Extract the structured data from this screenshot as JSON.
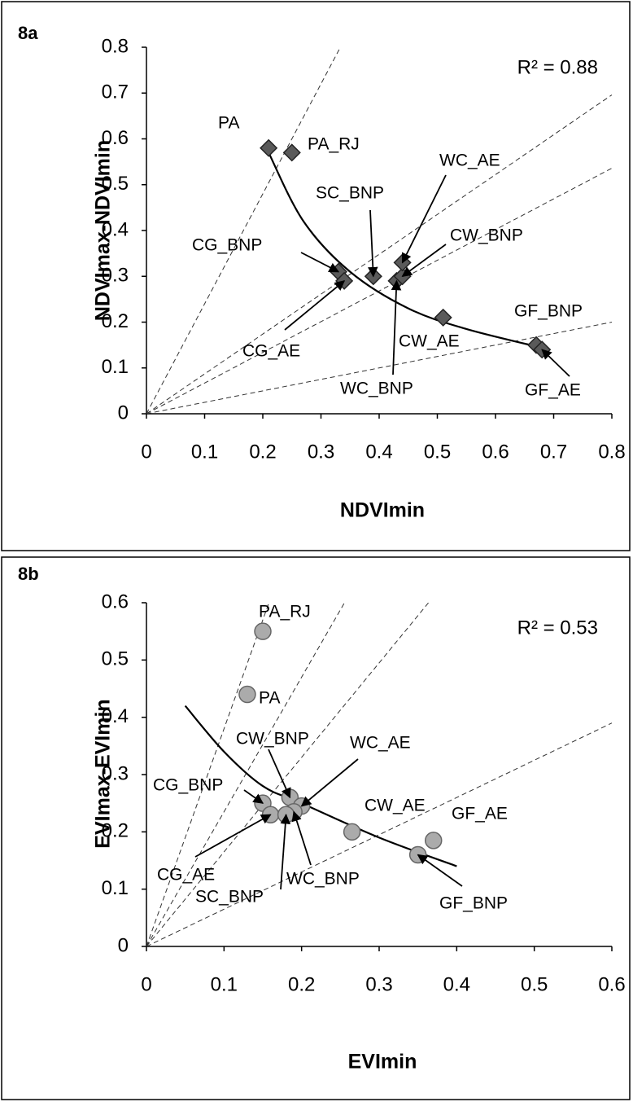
{
  "chart_data": [
    {
      "type": "scatter",
      "panel_label": "8a",
      "xlabel": "NDVImin",
      "ylabel": "NDVImax-NDVImin",
      "annotation": "R² = 0.88",
      "marker": "diamond",
      "color": "#5a5a5a",
      "labels": [
        "PA",
        "PA_RJ",
        "CG_BNP",
        "CG_AE",
        "SC_BNP",
        "WC_BNP",
        "CW_BNP",
        "WC_AE",
        "CW_AE",
        "GF_BNP",
        "GF_AE"
      ],
      "x": [
        0.21,
        0.25,
        0.33,
        0.34,
        0.39,
        0.43,
        0.44,
        0.44,
        0.51,
        0.67,
        0.68
      ],
      "y": [
        0.58,
        0.57,
        0.31,
        0.29,
        0.3,
        0.29,
        0.3,
        0.33,
        0.21,
        0.15,
        0.14
      ],
      "trend_x": [
        0.21,
        0.27,
        0.35,
        0.45,
        0.55,
        0.68
      ],
      "trend_y": [
        0.57,
        0.42,
        0.31,
        0.23,
        0.185,
        0.144
      ],
      "ref_slopes": [
        2.4,
        0.87,
        0.67,
        0.25
      ],
      "xlim": [
        0,
        0.8
      ],
      "ylim": [
        0,
        0.8
      ],
      "xticks": [
        0,
        0.1,
        0.2,
        0.3,
        0.4,
        0.5,
        0.6,
        0.7,
        0.8
      ],
      "yticks": [
        0,
        0.1,
        0.2,
        0.3,
        0.4,
        0.5,
        0.6,
        0.7,
        0.8
      ]
    },
    {
      "type": "scatter",
      "panel_label": "8b",
      "xlabel": "EVImin",
      "ylabel": "EVImax-EVImin",
      "annotation": "R² = 0.53",
      "marker": "circle",
      "color": "#ababab",
      "labels": [
        "PA_RJ",
        "PA",
        "CW_BNP",
        "WC_AE",
        "CG_BNP",
        "CW_AE",
        "GF_AE",
        "CG_AE",
        "WC_BNP",
        "SC_BNP",
        "GF_BNP"
      ],
      "x": [
        0.15,
        0.13,
        0.185,
        0.2,
        0.15,
        0.265,
        0.37,
        0.16,
        0.19,
        0.18,
        0.35
      ],
      "y": [
        0.55,
        0.44,
        0.26,
        0.245,
        0.25,
        0.2,
        0.185,
        0.23,
        0.235,
        0.23,
        0.16
      ],
      "trend_x": [
        0.05,
        0.1,
        0.15,
        0.2,
        0.3,
        0.4
      ],
      "trend_y": [
        0.42,
        0.34,
        0.28,
        0.25,
        0.19,
        0.14
      ],
      "ref_slopes": [
        3.8,
        2.35,
        1.65,
        0.65
      ],
      "xlim": [
        0,
        0.6
      ],
      "ylim": [
        0,
        0.6
      ],
      "xticks": [
        0,
        0.1,
        0.2,
        0.3,
        0.4,
        0.5,
        0.6
      ],
      "yticks": [
        0,
        0.1,
        0.2,
        0.3,
        0.4,
        0.5,
        0.6
      ]
    }
  ]
}
